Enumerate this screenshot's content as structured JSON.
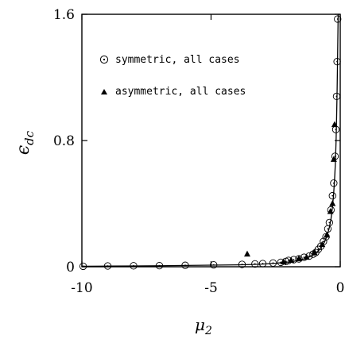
{
  "chart_data": {
    "type": "scatter",
    "title": "",
    "xlabel": "μ",
    "xlabel_sub": "2",
    "ylabel": "ϵ",
    "ylabel_sub": "dc",
    "xlim": [
      -10,
      0
    ],
    "ylim": [
      0,
      1.6
    ],
    "x_ticks": [
      -10,
      -5,
      0
    ],
    "x_tick_labels": [
      "-10",
      "-5",
      "0"
    ],
    "y_ticks": [
      0,
      0.8,
      1.6
    ],
    "y_tick_labels": [
      "0",
      "0.8",
      "1.6"
    ],
    "grid": false,
    "legend_position": "top-left",
    "series": [
      {
        "name": "symmetric, all cases",
        "marker": "circle-dot",
        "points": [
          [
            -9.95,
            0.003
          ],
          [
            -9.0,
            0.005
          ],
          [
            -8.0,
            0.006
          ],
          [
            -7.0,
            0.007
          ],
          [
            -6.0,
            0.009
          ],
          [
            -4.9,
            0.012
          ],
          [
            -3.8,
            0.015
          ],
          [
            -3.3,
            0.018
          ],
          [
            -3.0,
            0.02
          ],
          [
            -2.6,
            0.024
          ],
          [
            -2.3,
            0.028
          ],
          [
            -2.1,
            0.034
          ],
          [
            -2.0,
            0.04
          ],
          [
            -1.8,
            0.045
          ],
          [
            -1.6,
            0.05
          ],
          [
            -1.4,
            0.06
          ],
          [
            -1.2,
            0.068
          ],
          [
            -1.05,
            0.08
          ],
          [
            -0.95,
            0.09
          ],
          [
            -0.85,
            0.11
          ],
          [
            -0.75,
            0.13
          ],
          [
            -0.65,
            0.16
          ],
          [
            -0.55,
            0.19
          ],
          [
            -0.48,
            0.24
          ],
          [
            -0.42,
            0.28
          ],
          [
            -0.36,
            0.36
          ],
          [
            -0.3,
            0.45
          ],
          [
            -0.25,
            0.53
          ],
          [
            -0.2,
            0.7
          ],
          [
            -0.17,
            0.87
          ],
          [
            -0.14,
            1.08
          ],
          [
            -0.12,
            1.3
          ],
          [
            -0.1,
            1.57
          ]
        ]
      },
      {
        "name": "asymmetric, all cases",
        "marker": "triangle",
        "points": [
          [
            -3.6,
            0.08
          ],
          [
            -2.2,
            0.03
          ],
          [
            -1.9,
            0.04
          ],
          [
            -1.6,
            0.05
          ],
          [
            -1.3,
            0.06
          ],
          [
            -1.0,
            0.09
          ],
          [
            -0.7,
            0.14
          ],
          [
            -0.52,
            0.2
          ],
          [
            -0.38,
            0.35
          ],
          [
            -0.3,
            0.4
          ],
          [
            -0.25,
            0.68
          ],
          [
            -0.22,
            0.9
          ]
        ]
      }
    ],
    "fit_curve": {
      "x": [
        -10,
        -9,
        -8,
        -7,
        -6,
        -5,
        -4,
        -3.5,
        -3,
        -2.5,
        -2,
        -1.75,
        -1.5,
        -1.25,
        -1,
        -0.85,
        -0.7,
        -0.6,
        -0.5,
        -0.42,
        -0.36,
        -0.3,
        -0.26,
        -0.22,
        -0.19,
        -0.16,
        -0.14,
        -0.12,
        -0.1,
        -0.08,
        -0.06
      ],
      "y": [
        0.003,
        0.004,
        0.005,
        0.006,
        0.008,
        0.01,
        0.012,
        0.014,
        0.017,
        0.022,
        0.03,
        0.036,
        0.045,
        0.058,
        0.08,
        0.1,
        0.13,
        0.16,
        0.2,
        0.25,
        0.3,
        0.38,
        0.45,
        0.55,
        0.65,
        0.8,
        0.95,
        1.12,
        1.35,
        1.6,
        1.75
      ]
    }
  }
}
